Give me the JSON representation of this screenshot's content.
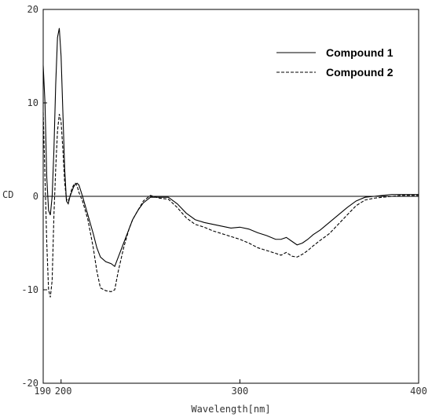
{
  "chart_data": {
    "type": "line",
    "title": "",
    "xlabel": "Wavelength[nm]",
    "ylabel": "CD",
    "xlim": [
      190,
      400
    ],
    "ylim": [
      -20,
      20
    ],
    "x_ticks": [
      190,
      200,
      300,
      400
    ],
    "y_ticks": [
      20,
      10,
      0,
      -10,
      -20
    ],
    "x_tick_labels": [
      "190",
      "200",
      "300",
      "400"
    ],
    "y_tick_labels": [
      "20",
      "10",
      "0",
      "-10",
      "-20"
    ],
    "grid": false,
    "zero_line": true,
    "legend": "top-right",
    "series": [
      {
        "name": "Compound 1",
        "style": "solid",
        "color": "#000000",
        "x": [
          190,
          191,
          192,
          193,
          194,
          195,
          196,
          197,
          198,
          199,
          200,
          201,
          202,
          203,
          204,
          205,
          206,
          207,
          208,
          209,
          210,
          212,
          215,
          218,
          220,
          222,
          225,
          228,
          230,
          232,
          235,
          238,
          240,
          243,
          246,
          250,
          255,
          260,
          265,
          270,
          275,
          280,
          285,
          290,
          295,
          300,
          305,
          310,
          315,
          320,
          323,
          326,
          329,
          332,
          335,
          338,
          341,
          345,
          350,
          355,
          360,
          365,
          370,
          375,
          380,
          385,
          390,
          395,
          400
        ],
        "y": [
          14,
          10,
          2,
          -1.5,
          -2,
          0,
          5,
          12,
          17,
          18,
          15,
          9,
          3,
          -0.5,
          -0.8,
          0,
          0.5,
          1.0,
          1.3,
          1.4,
          1.2,
          0,
          -2,
          -4,
          -5.5,
          -6.5,
          -7,
          -7.2,
          -7.5,
          -6.5,
          -5,
          -3.5,
          -2.5,
          -1.5,
          -0.7,
          -0.1,
          -0.1,
          -0.1,
          -0.8,
          -1.8,
          -2.5,
          -2.8,
          -3,
          -3.2,
          -3.4,
          -3.3,
          -3.5,
          -3.9,
          -4.2,
          -4.6,
          -4.6,
          -4.4,
          -4.8,
          -5.2,
          -5.0,
          -4.6,
          -4.1,
          -3.6,
          -2.8,
          -2.0,
          -1.2,
          -0.5,
          -0.1,
          0.0,
          0.1,
          0.2,
          0.2,
          0.2,
          0.2
        ]
      },
      {
        "name": "Compound 2",
        "style": "dashed",
        "color": "#000000",
        "x": [
          190,
          191,
          192,
          193,
          194,
          195,
          196,
          197,
          198,
          199,
          200,
          201,
          202,
          203,
          204,
          205,
          206,
          207,
          208,
          209,
          210,
          212,
          215,
          218,
          220,
          222,
          225,
          228,
          230,
          232,
          235,
          238,
          240,
          243,
          246,
          250,
          255,
          260,
          265,
          270,
          275,
          280,
          285,
          290,
          295,
          300,
          305,
          310,
          315,
          320,
          323,
          326,
          329,
          332,
          335,
          338,
          341,
          345,
          350,
          355,
          360,
          365,
          370,
          375,
          380,
          385,
          390,
          395,
          400
        ],
        "y": [
          9,
          2,
          -5,
          -10,
          -10.8,
          -9,
          -2,
          3,
          7,
          8.8,
          8,
          5,
          1.5,
          -0.3,
          -0.5,
          0,
          0.8,
          1.2,
          1.4,
          1.1,
          0.4,
          -0.5,
          -2.5,
          -5.5,
          -8,
          -9.8,
          -10.1,
          -10.2,
          -10,
          -8,
          -5.5,
          -3.5,
          -2.5,
          -1.5,
          -0.5,
          0.1,
          -0.2,
          -0.3,
          -1.2,
          -2.3,
          -3.0,
          -3.3,
          -3.7,
          -4.0,
          -4.3,
          -4.6,
          -5.0,
          -5.5,
          -5.8,
          -6.1,
          -6.3,
          -6.0,
          -6.4,
          -6.5,
          -6.2,
          -5.8,
          -5.3,
          -4.7,
          -4.0,
          -3.0,
          -2.0,
          -1.0,
          -0.4,
          -0.2,
          -0.1,
          0.0,
          0.1,
          0.1,
          0.1
        ]
      }
    ]
  }
}
